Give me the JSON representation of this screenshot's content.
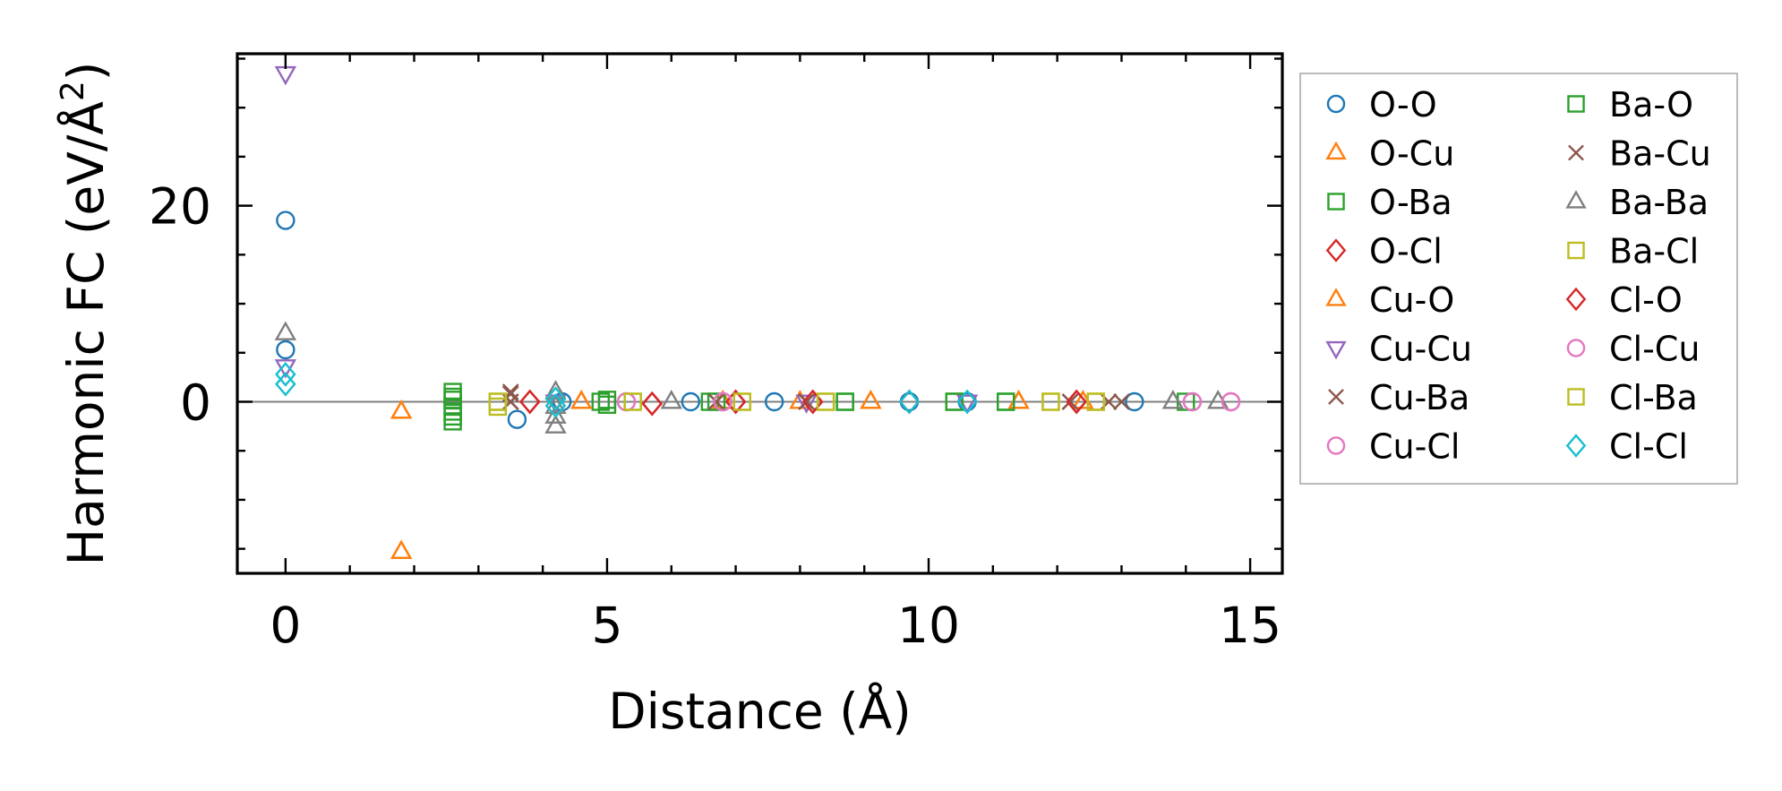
{
  "chart_data": {
    "type": "scatter",
    "xlabel": "Distance (Å)",
    "ylabel": "Harmonic FC (eV/Å",
    "ylabel_sup": "2",
    "ylabel_close": ")",
    "xlim": [
      -0.75,
      15.5
    ],
    "ylim": [
      -17.5,
      35.5
    ],
    "xticks": [
      0,
      5,
      10,
      15
    ],
    "xtick_labels": [
      "0",
      "5",
      "10",
      "15"
    ],
    "yticks": [
      0,
      20
    ],
    "ytick_labels": [
      "0",
      "20"
    ],
    "x_minor_step": 1,
    "y_minor_step": 5,
    "zero_line": true,
    "grid": false,
    "legend_position": "outside-right",
    "legend_columns": 2,
    "series": [
      {
        "name": "O-O",
        "marker": "circle",
        "color": "#1f77b4",
        "points": [
          [
            0,
            18.5
          ],
          [
            0,
            5.3
          ],
          [
            3.6,
            -1.8
          ],
          [
            4.3,
            0
          ],
          [
            6.3,
            0
          ],
          [
            7.6,
            0
          ],
          [
            9.7,
            0
          ],
          [
            10.6,
            0
          ],
          [
            13.2,
            0
          ]
        ]
      },
      {
        "name": "O-Cu",
        "marker": "triangle-up",
        "color": "#ff7f0e",
        "points": [
          [
            1.8,
            -1.0
          ],
          [
            1.8,
            -15.3
          ],
          [
            4.6,
            0
          ],
          [
            6.8,
            0
          ],
          [
            8.0,
            0
          ],
          [
            9.1,
            0
          ],
          [
            11.4,
            0
          ],
          [
            12.4,
            0
          ]
        ]
      },
      {
        "name": "O-Ba",
        "marker": "square",
        "color": "#2ca02c",
        "points": [
          [
            2.6,
            1.0
          ],
          [
            2.6,
            0.2
          ],
          [
            2.6,
            -0.5
          ],
          [
            2.6,
            -1.0
          ],
          [
            2.6,
            -2.0
          ],
          [
            4.9,
            0
          ],
          [
            5.0,
            -0.3
          ],
          [
            6.6,
            0
          ],
          [
            8.7,
            0
          ],
          [
            10.4,
            0
          ],
          [
            11.2,
            0
          ]
        ]
      },
      {
        "name": "O-Cl",
        "marker": "diamond",
        "color": "#d62728",
        "points": [
          [
            3.8,
            0
          ],
          [
            5.7,
            -0.2
          ],
          [
            7.0,
            0
          ],
          [
            8.2,
            0
          ],
          [
            9.7,
            0
          ],
          [
            12.3,
            0
          ]
        ]
      },
      {
        "name": "Cu-O",
        "marker": "triangle-up",
        "color": "#ff7f0e",
        "points": [
          [
            1.8,
            -1.0
          ],
          [
            1.8,
            -15.3
          ],
          [
            4.6,
            0
          ],
          [
            6.8,
            0
          ],
          [
            9.1,
            0
          ],
          [
            11.4,
            0
          ]
        ]
      },
      {
        "name": "Cu-Cu",
        "marker": "triangle-down",
        "color": "#9467bd",
        "points": [
          [
            0,
            33.5
          ],
          [
            0,
            3.6
          ],
          [
            4.2,
            0
          ],
          [
            8.1,
            0
          ],
          [
            10.6,
            0
          ]
        ]
      },
      {
        "name": "Cu-Ba",
        "marker": "x",
        "color": "#8c564b",
        "points": [
          [
            3.5,
            1.0
          ],
          [
            3.5,
            0
          ],
          [
            6.7,
            0
          ],
          [
            8.1,
            0
          ],
          [
            12.2,
            0
          ],
          [
            13.0,
            0
          ]
        ]
      },
      {
        "name": "Cu-Cl",
        "marker": "circle",
        "color": "#e377c2",
        "points": [
          [
            5.3,
            0
          ],
          [
            6.8,
            0
          ],
          [
            14.1,
            0
          ],
          [
            14.7,
            0
          ]
        ]
      },
      {
        "name": "Ba-O",
        "marker": "square",
        "color": "#2ca02c",
        "points": [
          [
            2.6,
            0.5
          ],
          [
            2.6,
            -1.5
          ],
          [
            5.0,
            0.2
          ],
          [
            6.7,
            0
          ],
          [
            8.7,
            0
          ],
          [
            10.4,
            0
          ],
          [
            11.2,
            0
          ],
          [
            14.0,
            0
          ]
        ]
      },
      {
        "name": "Ba-Cu",
        "marker": "x",
        "color": "#8c564b",
        "points": [
          [
            3.5,
            0.8
          ],
          [
            3.5,
            0
          ],
          [
            6.7,
            0
          ],
          [
            8.1,
            0
          ],
          [
            12.2,
            0
          ],
          [
            12.8,
            0
          ]
        ]
      },
      {
        "name": "Ba-Ba",
        "marker": "triangle-up",
        "color": "#7f7f7f",
        "points": [
          [
            0,
            7.0
          ],
          [
            4.2,
            1.0
          ],
          [
            4.2,
            -0.5
          ],
          [
            4.2,
            -1.5
          ],
          [
            4.2,
            -2.5
          ],
          [
            6.0,
            0
          ],
          [
            13.8,
            0
          ],
          [
            14.5,
            0
          ]
        ]
      },
      {
        "name": "Ba-Cl",
        "marker": "square",
        "color": "#bcbd22",
        "points": [
          [
            3.3,
            0
          ],
          [
            3.3,
            -0.5
          ],
          [
            5.4,
            0
          ],
          [
            7.1,
            0
          ],
          [
            8.4,
            0
          ],
          [
            11.9,
            0
          ],
          [
            12.6,
            0
          ]
        ]
      },
      {
        "name": "Cl-O",
        "marker": "diamond",
        "color": "#d62728",
        "points": [
          [
            3.8,
            0
          ],
          [
            5.7,
            -0.2
          ],
          [
            7.0,
            0
          ],
          [
            8.2,
            0
          ],
          [
            12.3,
            0
          ]
        ]
      },
      {
        "name": "Cl-Cu",
        "marker": "circle",
        "color": "#e377c2",
        "points": [
          [
            5.3,
            0
          ],
          [
            6.8,
            0
          ],
          [
            14.1,
            0
          ],
          [
            14.7,
            0
          ]
        ]
      },
      {
        "name": "Cl-Ba",
        "marker": "square",
        "color": "#bcbd22",
        "points": [
          [
            3.3,
            0
          ],
          [
            5.4,
            0
          ],
          [
            7.1,
            0
          ],
          [
            8.4,
            0
          ],
          [
            11.9,
            0
          ],
          [
            12.6,
            0
          ]
        ]
      },
      {
        "name": "Cl-Cl",
        "marker": "diamond",
        "color": "#17becf",
        "points": [
          [
            0,
            2.8
          ],
          [
            0,
            1.8
          ],
          [
            4.2,
            0.3
          ],
          [
            4.2,
            -0.4
          ],
          [
            9.7,
            0
          ],
          [
            10.6,
            0
          ]
        ]
      }
    ]
  }
}
